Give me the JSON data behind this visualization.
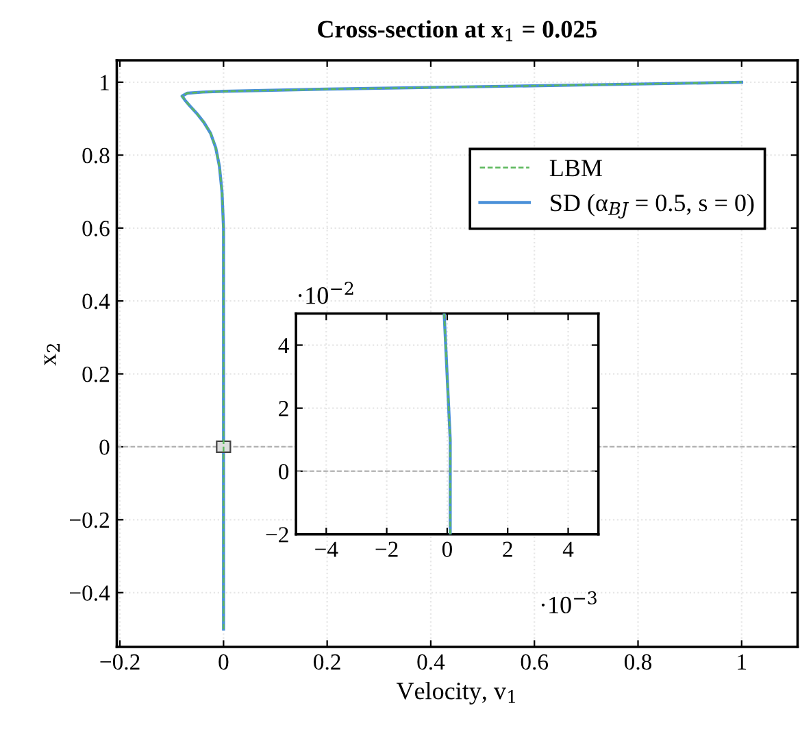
{
  "chart_data": [
    {
      "type": "line",
      "title": "Cross-section at x$_{1}$ = 0.025",
      "xlabel": "Velocity, v$_{1}$",
      "ylabel": "x$_{2}$",
      "xlim": [
        -0.206,
        1.108
      ],
      "ylim": [
        -0.549,
        1.06
      ],
      "xticks": [
        {
          "value": -0.2,
          "label": "−0.2"
        },
        0,
        0.2,
        0.4,
        0.6,
        0.8,
        1
      ],
      "yticks": [
        {
          "value": -0.4,
          "label": "−0.4"
        },
        {
          "value": -0.2,
          "label": "−0.2"
        },
        0,
        0.2,
        0.4,
        0.6,
        0.8,
        1
      ],
      "grid": true,
      "legend": "top right",
      "ref_lines": [
        {
          "axis": "y",
          "value": 0,
          "color": "#b0b0b0",
          "line_style": "dashed"
        }
      ],
      "series": [
        {
          "name": "LBM",
          "color": "#5cb85c",
          "line_style": "dashed",
          "x": [
            0,
            0,
            0,
            0,
            -0.003,
            -0.008,
            -0.015,
            -0.025,
            -0.038,
            -0.052,
            -0.065,
            -0.074,
            -0.08,
            -0.07,
            -0.04,
            0,
            0.2,
            0.5,
            0.8,
            1
          ],
          "values": [
            -0.5,
            0,
            0.4,
            0.6,
            0.7,
            0.77,
            0.82,
            0.86,
            0.89,
            0.915,
            0.935,
            0.95,
            0.962,
            0.97,
            0.973,
            0.975,
            0.981,
            0.988,
            0.995,
            1.0
          ]
        },
        {
          "name": "SD (α$_{BJ}$ = 0.5, s = 0)",
          "color": "#4a90d9",
          "line_style": "solid",
          "x": [
            0,
            0,
            0,
            0,
            -0.003,
            -0.008,
            -0.015,
            -0.025,
            -0.038,
            -0.052,
            -0.065,
            -0.074,
            -0.08,
            -0.07,
            -0.04,
            0,
            0.2,
            0.5,
            0.8,
            1
          ],
          "values": [
            -0.5,
            0,
            0.4,
            0.6,
            0.7,
            0.77,
            0.82,
            0.86,
            0.89,
            0.915,
            0.935,
            0.95,
            0.962,
            0.97,
            0.973,
            0.975,
            0.981,
            0.988,
            0.995,
            1.0
          ]
        }
      ]
    },
    {
      "type": "line",
      "xlim": [
        -5,
        5
      ],
      "ylim": [
        -2,
        5
      ],
      "xticks": [
        {
          "value": -4,
          "label": "−4"
        },
        {
          "value": -2,
          "label": "−2"
        },
        0,
        2,
        4
      ],
      "yticks": [
        {
          "value": -2,
          "label": "−2"
        },
        0,
        2,
        4
      ],
      "grid": true,
      "annotations": [
        "·10$^{−2}$",
        "·10$^{−3}$"
      ],
      "ref_lines": [
        {
          "axis": "y",
          "value": 0,
          "color": "#b0b0b0",
          "line_style": "dashed"
        }
      ],
      "series": [
        {
          "color": "#5cb85c",
          "line_style": "dashed",
          "x": [
            0.1,
            0.1,
            0.1,
            0.0,
            -0.1
          ],
          "values": [
            -2,
            0,
            1,
            3,
            5
          ]
        },
        {
          "color": "#4a90d9",
          "line_style": "solid",
          "x": [
            0.1,
            0.1,
            0.1,
            0.0,
            -0.1
          ],
          "values": [
            -2,
            0,
            1,
            3,
            5
          ]
        }
      ]
    }
  ]
}
